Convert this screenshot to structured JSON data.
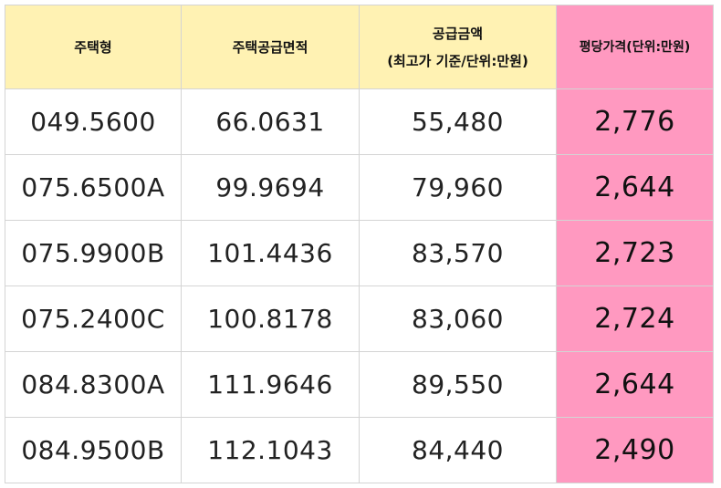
{
  "table": {
    "headers": {
      "type": "주택형",
      "area": "주택공급면적",
      "supply_line1": "공급금액",
      "supply_line2": "(최고가 기준/단위:만원)",
      "price_per_pyeong": "평당가격(단위:만원)"
    },
    "rows": [
      {
        "type": "049.5600",
        "area": "66.0631",
        "supply": "55,480",
        "price": "2,776"
      },
      {
        "type": "075.6500A",
        "area": "99.9694",
        "supply": "79,960",
        "price": "2,644"
      },
      {
        "type": "075.9900B",
        "area": "101.4436",
        "supply": "83,570",
        "price": "2,723"
      },
      {
        "type": "075.2400C",
        "area": "100.8178",
        "supply": "83,060",
        "price": "2,724"
      },
      {
        "type": "084.8300A",
        "area": "111.9646",
        "supply": "89,550",
        "price": "2,644"
      },
      {
        "type": "084.9500B",
        "area": "112.1043",
        "supply": "84,440",
        "price": "2,490"
      }
    ]
  },
  "colors": {
    "header_background": "#fff2b3",
    "highlight_column": "#ff99c0",
    "border": "#d4d4d4"
  }
}
